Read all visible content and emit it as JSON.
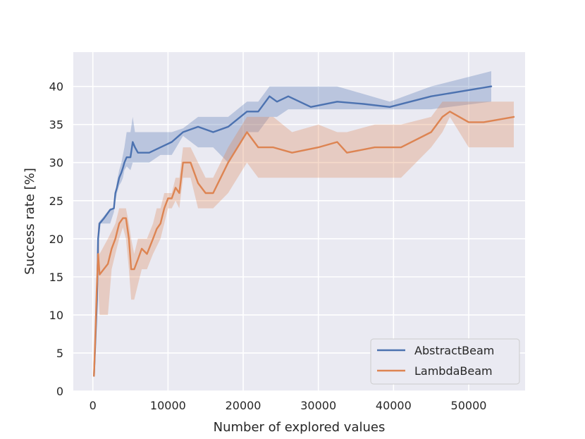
{
  "chart_data": {
    "type": "line",
    "xlabel": "Number of explored values",
    "ylabel": "Success rate [%]",
    "xlim": [
      -2600,
      57500
    ],
    "ylim": [
      0,
      44.5
    ],
    "xticks": [
      0,
      10000,
      20000,
      30000,
      40000,
      50000
    ],
    "yticks": [
      0,
      5,
      10,
      15,
      20,
      25,
      30,
      35,
      40
    ],
    "xtick_labels": [
      "0",
      "10000",
      "20000",
      "30000",
      "40000",
      "50000"
    ],
    "ytick_labels": [
      "0",
      "5",
      "10",
      "15",
      "20",
      "25",
      "30",
      "35",
      "40"
    ],
    "grid": true,
    "background": "#eaeaf2",
    "legend_position": "lower-right",
    "series": [
      {
        "name": "AbstractBeam",
        "color": "#4c72b0",
        "x": [
          150,
          350,
          550,
          700,
          900,
          1500,
          2300,
          2800,
          3000,
          3200,
          3500,
          3800,
          4000,
          4200,
          4500,
          5000,
          5300,
          5600,
          6000,
          7500,
          9000,
          10500,
          12000,
          14000,
          16000,
          18000,
          20500,
          22000,
          23500,
          24500,
          26000,
          29000,
          32500,
          36000,
          39500,
          45000,
          53000
        ],
        "y": [
          2,
          7,
          12,
          20,
          22,
          22.7,
          23.8,
          24,
          26,
          26.7,
          28,
          28.7,
          29.3,
          30,
          30.7,
          30.7,
          32.7,
          32,
          31.3,
          31.3,
          32,
          32.7,
          34,
          34.7,
          34,
          34.7,
          36.7,
          36.7,
          38.7,
          38,
          38.7,
          37.3,
          38,
          37.7,
          37.3,
          38.7,
          40
        ],
        "band_lower": [
          2,
          6,
          10,
          18,
          22,
          22,
          22,
          23.5,
          25,
          26,
          27,
          27.5,
          28,
          29,
          29.5,
          29,
          30,
          30,
          30,
          30,
          31,
          31,
          33.5,
          32,
          32,
          30,
          34,
          34,
          36,
          36,
          37,
          37,
          37,
          37,
          37,
          37,
          38
        ],
        "band_upper": [
          2,
          8,
          14,
          22,
          22.3,
          23,
          24,
          24,
          26,
          27.5,
          29,
          30,
          31,
          32,
          34,
          34,
          36,
          34,
          34,
          34,
          34,
          34,
          34.5,
          36,
          36,
          36,
          38,
          38,
          40,
          40,
          40,
          40,
          40,
          39,
          38,
          40,
          42
        ]
      },
      {
        "name": "LambdaBeam",
        "color": "#dd8452",
        "x": [
          150,
          350,
          500,
          700,
          900,
          2000,
          2500,
          3000,
          3500,
          4000,
          4400,
          4800,
          5100,
          5500,
          6000,
          6500,
          7200,
          8000,
          8500,
          9000,
          9500,
          10000,
          10500,
          11000,
          11500,
          12000,
          13000,
          14000,
          15000,
          16000,
          18000,
          20500,
          22000,
          24000,
          26500,
          30000,
          32500,
          33800,
          37500,
          41000,
          45000,
          46500,
          47500,
          50000,
          52000,
          56000
        ],
        "y": [
          2,
          8,
          13,
          18,
          15.3,
          16.7,
          18.7,
          20,
          22,
          22.7,
          22.7,
          20,
          16,
          16,
          17.3,
          18.7,
          18,
          20,
          21.3,
          22,
          24,
          25.3,
          25.3,
          26.7,
          26,
          30,
          30,
          27.3,
          26,
          26,
          30,
          34,
          32,
          32,
          31.3,
          32,
          32.7,
          31.3,
          32,
          32,
          34,
          36,
          36.7,
          35.3,
          35.3,
          36
        ],
        "band_lower": [
          2,
          6,
          10,
          14,
          10,
          10,
          16,
          18,
          20,
          21.5,
          20,
          16,
          12,
          12,
          14,
          16,
          16,
          18,
          19,
          20,
          22,
          24,
          24,
          25,
          24,
          28,
          28,
          24,
          24,
          24,
          26,
          30,
          28,
          28,
          28,
          28,
          28,
          28,
          28,
          28,
          32,
          34,
          36,
          32,
          32,
          32
        ],
        "band_upper": [
          2,
          10,
          16,
          22,
          18,
          20,
          21,
          22,
          24,
          24,
          24,
          22,
          20,
          18,
          20,
          20,
          20,
          22,
          24,
          24,
          26,
          26,
          26,
          28,
          28,
          32,
          32,
          30,
          28,
          28,
          32,
          36,
          36,
          36,
          34,
          35,
          34,
          34,
          35,
          35,
          36,
          38,
          38,
          38,
          38,
          38
        ]
      }
    ]
  }
}
